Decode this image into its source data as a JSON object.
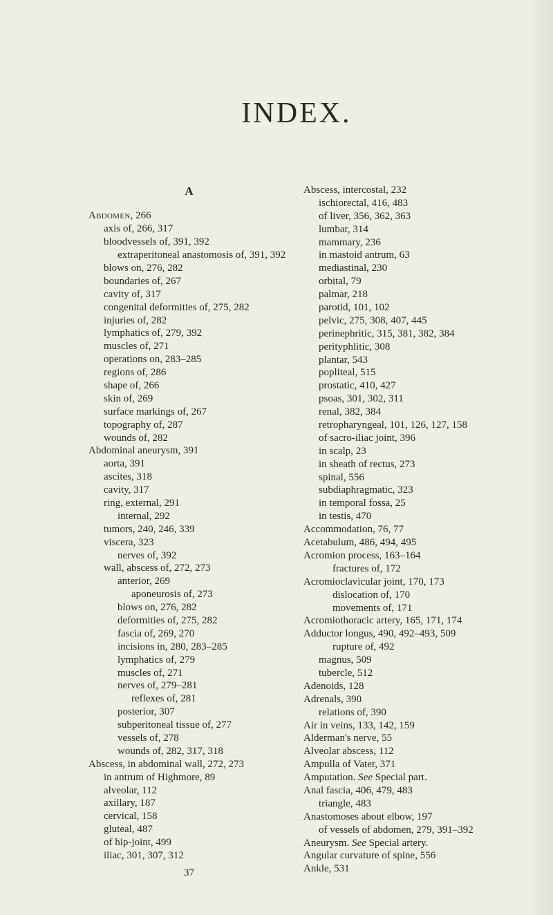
{
  "title": "INDEX.",
  "heading_letter": "A",
  "page_number": "37",
  "left": [
    {
      "cls": "entry",
      "html": "<span class='sc'>Abdomen</span>, 266"
    },
    {
      "cls": "entry ind1",
      "html": "axis of, 266, 317"
    },
    {
      "cls": "entry ind1",
      "html": "bloodvessels of, 391, 392"
    },
    {
      "cls": "entry ind2",
      "html": "extraperitoneal anastomosis of, 391, 392"
    },
    {
      "cls": "entry ind1",
      "html": "blows on, 276, 282"
    },
    {
      "cls": "entry ind1",
      "html": "boundaries of, 267"
    },
    {
      "cls": "entry ind1",
      "html": "cavity of, 317"
    },
    {
      "cls": "entry ind1",
      "html": "congenital deformities of, 275, 282"
    },
    {
      "cls": "entry ind1",
      "html": "injuries of, 282"
    },
    {
      "cls": "entry ind1",
      "html": "lymphatics of, 279, 392"
    },
    {
      "cls": "entry ind1",
      "html": "muscles of, 271"
    },
    {
      "cls": "entry ind1",
      "html": "operations on, 283–285"
    },
    {
      "cls": "entry ind1",
      "html": "regions of, 286"
    },
    {
      "cls": "entry ind1",
      "html": "shape of, 266"
    },
    {
      "cls": "entry ind1",
      "html": "skin of, 269"
    },
    {
      "cls": "entry ind1",
      "html": "surface markings of, 267"
    },
    {
      "cls": "entry ind1",
      "html": "topography of, 287"
    },
    {
      "cls": "entry ind1",
      "html": "wounds of, 282"
    },
    {
      "cls": "entry",
      "html": "Abdominal aneurysm, 391"
    },
    {
      "cls": "entry ind1",
      "html": "aorta, 391"
    },
    {
      "cls": "entry ind1",
      "html": "ascites, 318"
    },
    {
      "cls": "entry ind1",
      "html": "cavity, 317"
    },
    {
      "cls": "entry ind1",
      "html": "ring, external, 291"
    },
    {
      "cls": "entry ind2",
      "html": "internal, 292"
    },
    {
      "cls": "entry ind1",
      "html": "tumors, 240, 246, 339"
    },
    {
      "cls": "entry ind1",
      "html": "viscera, 323"
    },
    {
      "cls": "entry ind2",
      "html": "nerves of, 392"
    },
    {
      "cls": "entry ind1",
      "html": "wall, abscess of, 272, 273"
    },
    {
      "cls": "entry ind2",
      "html": "anterior, 269"
    },
    {
      "cls": "entry ind3",
      "html": "aponeurosis of, 273"
    },
    {
      "cls": "entry ind2",
      "html": "blows on, 276, 282"
    },
    {
      "cls": "entry ind2",
      "html": "deformities of, 275, 282"
    },
    {
      "cls": "entry ind2",
      "html": "fascia of, 269, 270"
    },
    {
      "cls": "entry ind2",
      "html": "incisions in, 280, 283–285"
    },
    {
      "cls": "entry ind2",
      "html": "lymphatics of, 279"
    },
    {
      "cls": "entry ind2",
      "html": "muscles of, 271"
    },
    {
      "cls": "entry ind2",
      "html": "nerves of, 279–281"
    },
    {
      "cls": "entry ind3",
      "html": "reflexes of, 281"
    },
    {
      "cls": "entry ind2",
      "html": "posterior, 307"
    },
    {
      "cls": "entry ind2",
      "html": "subperitoneal tissue of, 277"
    },
    {
      "cls": "entry ind2",
      "html": "vessels of, 278"
    },
    {
      "cls": "entry ind2",
      "html": "wounds of, 282, 317, 318"
    },
    {
      "cls": "entry",
      "html": "Abscess, in abdominal wall, 272, 273"
    },
    {
      "cls": "entry ind1",
      "html": "in antrum of Highmore, 89"
    },
    {
      "cls": "entry ind1",
      "html": "alveolar, 112"
    },
    {
      "cls": "entry ind1",
      "html": "axillary, 187"
    },
    {
      "cls": "entry ind1",
      "html": "cervical, 158"
    },
    {
      "cls": "entry ind1",
      "html": "gluteal, 487"
    },
    {
      "cls": "entry ind1",
      "html": "of hip-joint, 499"
    },
    {
      "cls": "entry ind1",
      "html": "iliac, 301, 307, 312"
    }
  ],
  "right": [
    {
      "cls": "entry",
      "html": "Abscess, intercostal, 232"
    },
    {
      "cls": "entry ind1",
      "html": "ischiorectal, 416, 483"
    },
    {
      "cls": "entry ind1",
      "html": "of liver, 356, 362, 363"
    },
    {
      "cls": "entry ind1",
      "html": "lumbar, 314"
    },
    {
      "cls": "entry ind1",
      "html": "mammary, 236"
    },
    {
      "cls": "entry ind1",
      "html": "in mastoid antrum, 63"
    },
    {
      "cls": "entry ind1",
      "html": "mediastinal, 230"
    },
    {
      "cls": "entry ind1",
      "html": "orbital, 79"
    },
    {
      "cls": "entry ind1",
      "html": "palmar, 218"
    },
    {
      "cls": "entry ind1",
      "html": "parotid, 101, 102"
    },
    {
      "cls": "entry ind1",
      "html": "pelvic, 275, 308, 407, 445"
    },
    {
      "cls": "entry ind1",
      "html": "perinephritic, 315, 381, 382, 384"
    },
    {
      "cls": "entry ind1",
      "html": "perityphlitic, 308"
    },
    {
      "cls": "entry ind1",
      "html": "plantar, 543"
    },
    {
      "cls": "entry ind1",
      "html": "popliteal, 515"
    },
    {
      "cls": "entry ind1",
      "html": "prostatic, 410, 427"
    },
    {
      "cls": "entry ind1",
      "html": "psoas, 301, 302, 311"
    },
    {
      "cls": "entry ind1",
      "html": "renal, 382, 384"
    },
    {
      "cls": "entry ind1",
      "html": "retropharyngeal, 101, 126, 127, 158"
    },
    {
      "cls": "entry ind1",
      "html": "of sacro-iliac joint, 396"
    },
    {
      "cls": "entry ind1",
      "html": "in scalp, 23"
    },
    {
      "cls": "entry ind1",
      "html": "in sheath of rectus, 273"
    },
    {
      "cls": "entry ind1",
      "html": "spinal, 556"
    },
    {
      "cls": "entry ind1",
      "html": "subdiaphragmatic, 323"
    },
    {
      "cls": "entry ind1",
      "html": "in temporal fossa, 25"
    },
    {
      "cls": "entry ind1",
      "html": "in testis, 470"
    },
    {
      "cls": "entry",
      "html": "Accommodation, 76, 77"
    },
    {
      "cls": "entry",
      "html": "Acetabulum, 486, 494, 495"
    },
    {
      "cls": "entry",
      "html": "Acromion process, 163–164"
    },
    {
      "cls": "entry ind2",
      "html": "fractures of, 172"
    },
    {
      "cls": "entry",
      "html": "Acromioclavicular joint, 170, 173"
    },
    {
      "cls": "entry ind2",
      "html": "dislocation of, 170"
    },
    {
      "cls": "entry ind2",
      "html": "movements of, 171"
    },
    {
      "cls": "entry",
      "html": "Acromiothoracic artery, 165, 171, 174"
    },
    {
      "cls": "entry",
      "html": "Adductor longus, 490, 492–493, 509"
    },
    {
      "cls": "entry ind2",
      "html": "rupture of, 492"
    },
    {
      "cls": "entry ind1",
      "html": "magnus, 509"
    },
    {
      "cls": "entry ind1",
      "html": "tubercle, 512"
    },
    {
      "cls": "entry",
      "html": "Adenoids, 128"
    },
    {
      "cls": "entry",
      "html": "Adrenals, 390"
    },
    {
      "cls": "entry ind1",
      "html": "relations of, 390"
    },
    {
      "cls": "entry",
      "html": "Air in veins, 133, 142, 159"
    },
    {
      "cls": "entry",
      "html": "Alderman's nerve, 55"
    },
    {
      "cls": "entry",
      "html": "Alveolar abscess, 112"
    },
    {
      "cls": "entry",
      "html": "Ampulla of Vater, 371"
    },
    {
      "cls": "entry",
      "html": "Amputation. <i>See</i> Special part."
    },
    {
      "cls": "entry",
      "html": "Anal fascia, 406, 479, 483"
    },
    {
      "cls": "entry ind1",
      "html": "triangle, 483"
    },
    {
      "cls": "entry",
      "html": "Anastomoses about elbow, 197"
    },
    {
      "cls": "entry ind1",
      "html": "of vessels of abdomen, 279, 391–392"
    },
    {
      "cls": "entry",
      "html": "Aneurysm. <i>See</i> Special artery."
    },
    {
      "cls": "entry",
      "html": "Angular curvature of spine, 556"
    },
    {
      "cls": "entry",
      "html": "Ankle, 531"
    }
  ]
}
